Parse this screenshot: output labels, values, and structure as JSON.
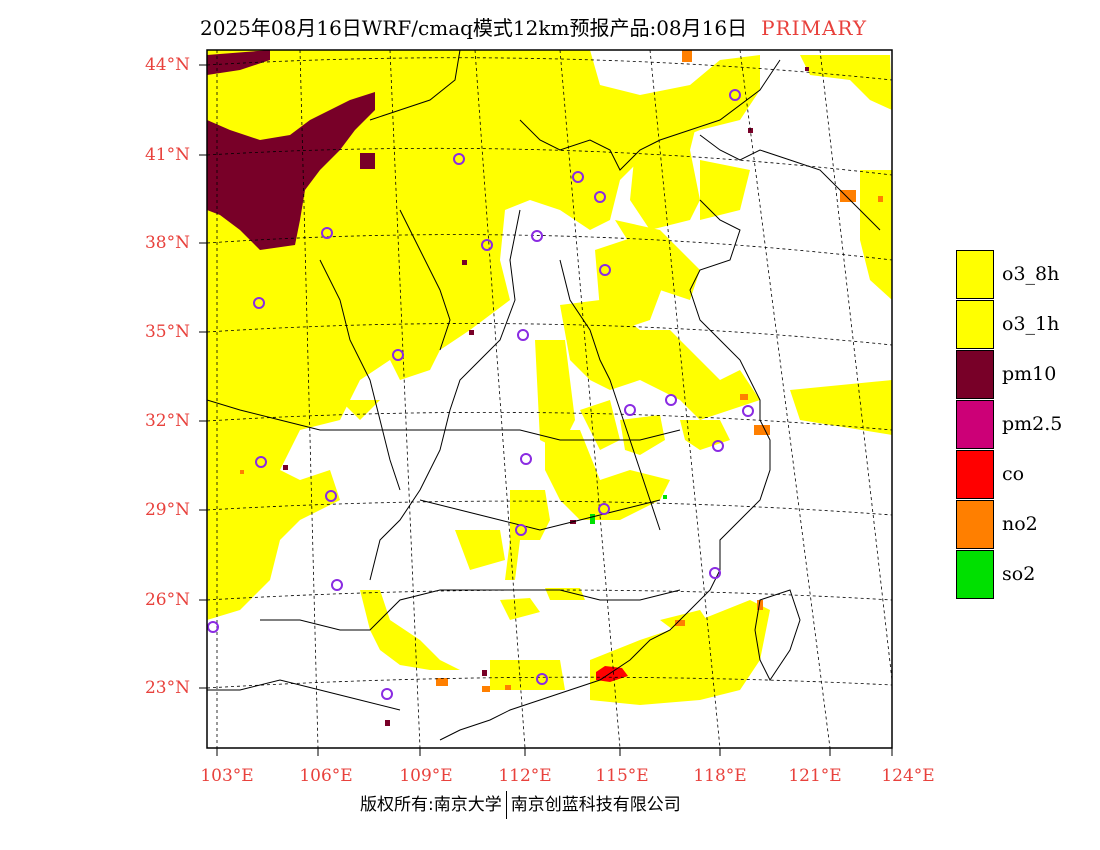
{
  "title": {
    "text": "2025年08月16日WRF/cmaq模式12km预报产品:08月16日",
    "tag": "PRIMARY"
  },
  "colors": {
    "o3": "#ffff00",
    "pm10": "#780028",
    "pm25": "#cc0077",
    "co": "#ff0000",
    "no2": "#ff7f00",
    "so2": "#00e000",
    "station": "#8a2be2",
    "axis_label": "#e8413c"
  },
  "lat_labels": [
    "44°N",
    "41°N",
    "38°N",
    "35°N",
    "32°N",
    "29°N",
    "26°N",
    "23°N"
  ],
  "lon_labels": [
    "103°E",
    "106°E",
    "109°E",
    "112°E",
    "115°E",
    "118°E",
    "121°E",
    "124°E"
  ],
  "legend": [
    {
      "label": "o3_8h",
      "color": "#ffff00"
    },
    {
      "label": "o3_1h",
      "color": "#ffff00"
    },
    {
      "label": "pm10",
      "color": "#780028"
    },
    {
      "label": "pm2.5",
      "color": "#cc0077"
    },
    {
      "label": "co",
      "color": "#ff0000"
    },
    {
      "label": "no2",
      "color": "#ff7f00"
    },
    {
      "label": "so2",
      "color": "#00e000"
    }
  ],
  "copyright": {
    "left": "版权所有:南京大学",
    "right": "南京创蓝科技有限公司"
  }
}
